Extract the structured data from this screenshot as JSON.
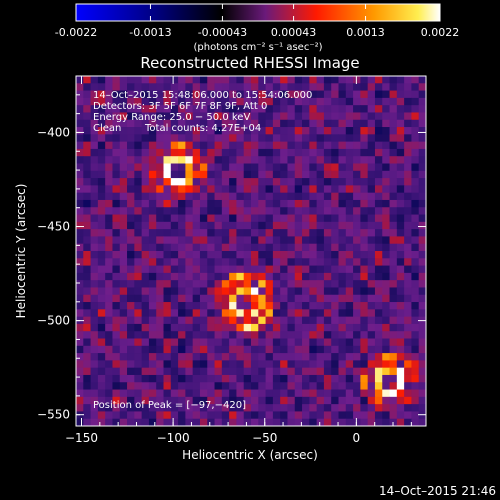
{
  "chart_data": {
    "type": "heatmap",
    "title": "Reconstructed RHESSI Image",
    "colorbar": {
      "ticks": [
        "-0.0022",
        "-0.0013",
        "-0.00043",
        "0.00043",
        "0.0013",
        "0.0022"
      ],
      "tick_values": [
        -0.0022,
        -0.0013,
        -0.00043,
        0.00043,
        0.0013,
        0.0022
      ],
      "range": [
        -0.0022,
        0.0022
      ],
      "units": "(photons cm⁻² s⁻¹ asec⁻²)"
    },
    "xlabel": "Heliocentric X (arcsec)",
    "ylabel": "Heliocentric Y (arcsec)",
    "xlim": [
      -153,
      38
    ],
    "ylim": [
      -556,
      -370
    ],
    "xticks": [
      "−150",
      "−100",
      "−50",
      "0"
    ],
    "xtick_values": [
      -150,
      -100,
      -50,
      0
    ],
    "yticks": [
      "−400",
      "−450",
      "−500",
      "−550"
    ],
    "ytick_values": [
      -400,
      -450,
      -500,
      -550
    ],
    "grid": false,
    "colors": [
      "#0000ff",
      "#00007a",
      "#000000",
      "#4a1c78",
      "#8a1a8a",
      "#ff1a00",
      "#ff8c00",
      "#ffea40",
      "#ffffff"
    ],
    "sources": [
      {
        "x": -97,
        "y": -420,
        "radius": 14
      },
      {
        "x": -60,
        "y": -490,
        "radius": 16
      },
      {
        "x": 18,
        "y": -532,
        "radius": 14
      }
    ],
    "annotations": {
      "time_range": "14–Oct–2015 15:48:06.000 to 15:54:06.000",
      "detectors": "Detectors: 3F 5F 6F 7F 8F 9F, Att 0",
      "energy": "Energy Range: 25.0 − 50.0 keV",
      "clean": "Clean",
      "total_counts": "Total counts: 4.27E+04",
      "peak": "Position of Peak = [−97,−420]"
    }
  },
  "footer": {
    "timestamp": "14–Oct–2015 21:46"
  }
}
